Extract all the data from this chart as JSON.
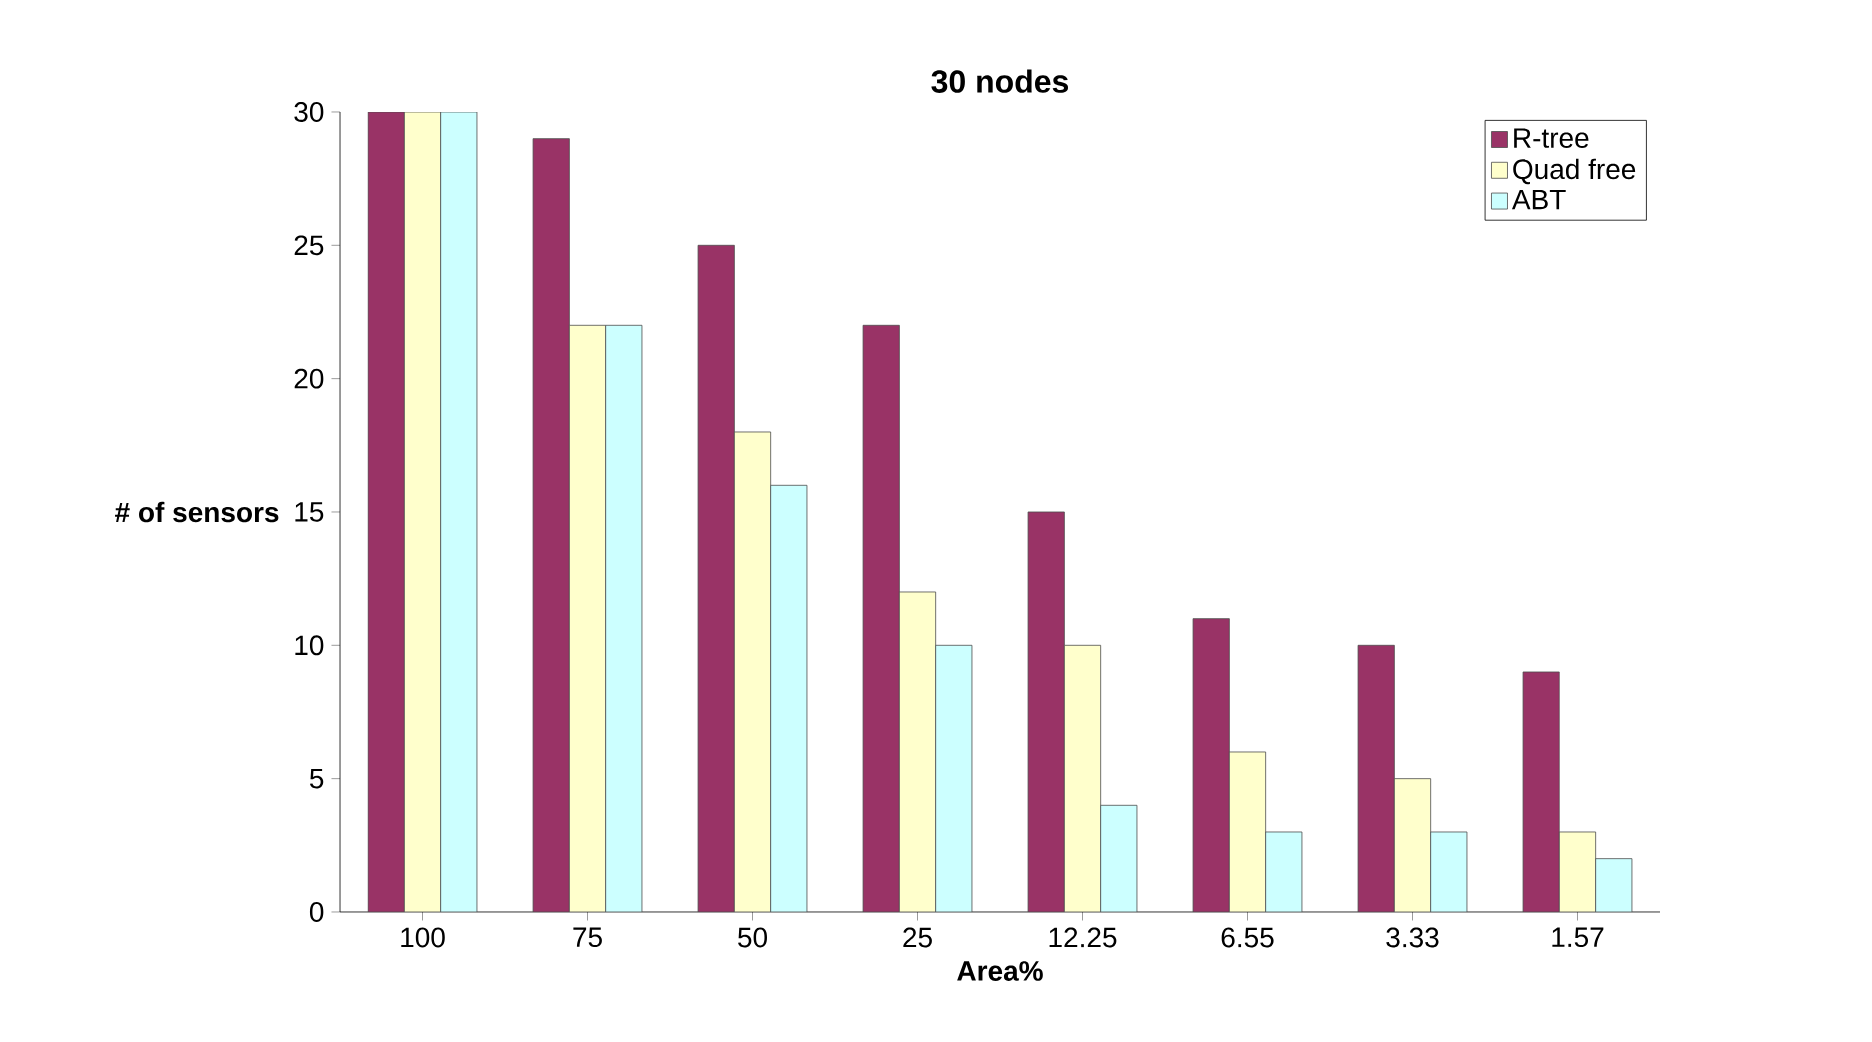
{
  "chart_data": {
    "type": "bar",
    "title": "30 nodes",
    "xlabel": "Area%",
    "ylabel": "# of sensors",
    "categories": [
      "100",
      "75",
      "50",
      "25",
      "12.25",
      "6.55",
      "3.33",
      "1.57"
    ],
    "series": [
      {
        "name": "R-tree",
        "color": "#993366",
        "values": [
          30,
          29,
          25,
          22,
          15,
          11,
          10,
          9
        ]
      },
      {
        "name": "Quad free",
        "color": "#ffffcc",
        "values": [
          30,
          22,
          18,
          12,
          10,
          6,
          5,
          3
        ]
      },
      {
        "name": "ABT",
        "color": "#ccffff",
        "values": [
          30,
          22,
          16,
          10,
          4,
          3,
          3,
          2
        ]
      }
    ],
    "ylim": [
      0,
      30
    ],
    "yticks": [
      0,
      5,
      10,
      15,
      20,
      25,
      30
    ],
    "grid": false,
    "legend": "top right"
  }
}
